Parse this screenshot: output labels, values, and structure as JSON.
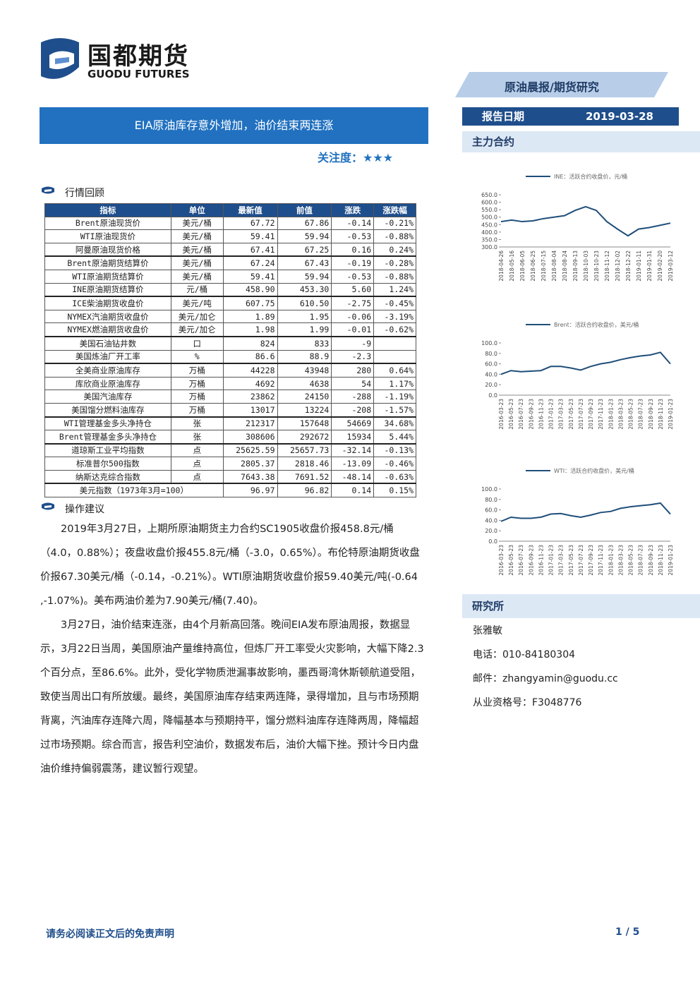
{
  "header": {
    "logo_cn": "国都期货",
    "logo_en": "GUODU FUTURES",
    "tag": "原油晨报/期货研究",
    "title": "EIA原油库存意外增加，油价结束两连涨",
    "attention_label": "关注度：",
    "attention_stars": "★★★",
    "date_label": "报告日期",
    "date": "2019-03-28"
  },
  "sections": {
    "contracts": "主力合约",
    "review": "行情回顾",
    "advice": "操作建议",
    "institute": "研究所"
  },
  "table": {
    "header": [
      "指标",
      "单位",
      "最新值",
      "前值",
      "涨跌",
      "涨跌幅"
    ],
    "groups": [
      [
        [
          "Brent原油现货价",
          "美元/桶",
          "67.72",
          "67.86",
          "-0.14",
          "-0.21%"
        ],
        [
          "WTI原油现货价",
          "美元/桶",
          "59.41",
          "59.94",
          "-0.53",
          "-0.88%"
        ],
        [
          "阿曼原油现货价格",
          "美元/桶",
          "67.41",
          "67.25",
          "0.16",
          "0.24%"
        ]
      ],
      [
        [
          "Brent原油期货结算价",
          "美元/桶",
          "67.24",
          "67.43",
          "-0.19",
          "-0.28%"
        ],
        [
          "WTI原油期货结算价",
          "美元/桶",
          "59.41",
          "59.94",
          "-0.53",
          "-0.88%"
        ],
        [
          "INE原油期货结算价",
          "元/桶",
          "458.90",
          "453.30",
          "5.60",
          "1.24%"
        ]
      ],
      [
        [
          "ICE柴油期货收盘价",
          "美元/吨",
          "607.75",
          "610.50",
          "-2.75",
          "-0.45%"
        ],
        [
          "NYMEX汽油期货收盘价",
          "美元/加仑",
          "1.89",
          "1.95",
          "-0.06",
          "-3.19%"
        ],
        [
          "NYMEX燃油期货收盘价",
          "美元/加仑",
          "1.98",
          "1.99",
          "-0.01",
          "-0.62%"
        ]
      ],
      [
        [
          "美国石油钻井数",
          "口",
          "824",
          "833",
          "-9",
          null
        ],
        [
          "美国炼油厂开工率",
          "%",
          "86.6",
          "88.9",
          "-2.3",
          null
        ]
      ],
      [
        [
          "全美商业原油库存",
          "万桶",
          "44228",
          "43948",
          "280",
          "0.64%"
        ],
        [
          "库欣商业原油库存",
          "万桶",
          "4692",
          "4638",
          "54",
          "1.17%"
        ],
        [
          "美国汽油库存",
          "万桶",
          "23862",
          "24150",
          "-288",
          "-1.19%"
        ],
        [
          "美国馏分燃料油库存",
          "万桶",
          "13017",
          "13224",
          "-208",
          "-1.57%"
        ]
      ],
      [
        [
          "WTI管理基金多头净持仓",
          "张",
          "212317",
          "157648",
          "54669",
          "34.68%"
        ],
        [
          "Brent管理基金多头净持仓",
          "张",
          "308606",
          "292672",
          "15934",
          "5.44%"
        ]
      ],
      [
        [
          "道琼斯工业平均指数",
          "点",
          "25625.59",
          "25657.73",
          "-32.14",
          "-0.13%"
        ],
        [
          "标准普尔500指数",
          "点",
          "2805.37",
          "2818.46",
          "-13.09",
          "-0.46%"
        ],
        [
          "纳斯达克综合指数",
          "点",
          "7643.38",
          "7691.52",
          "-48.14",
          "-0.63%"
        ]
      ],
      [
        [
          "美元指数（1973年3月=100）",
          "96.97",
          "96.82",
          "0.14",
          "0.15%"
        ]
      ]
    ]
  },
  "advice": [
    "2019年3月27日，上期所原油期货主力合约SC1905收盘价报458.8元/桶（4.0，0.88%）；夜盘收盘价报455.8元/桶（-3.0，0.65%）。布伦特原油期货收盘价报67.30美元/桶（-0.14，-0.21%）。WTI原油期货收盘价报59.40美元/吨(-0.64 ,-1.07%)。美布两油价差为7.90美元/桶(7.40)。",
    "3月27日，油价结束连涨，由4个月新高回落。晚间EIA发布原油周报，数据显示，3月22日当周，美国原油产量维持高位，但炼厂开工率受火灾影响，大幅下降2.3个百分点，至86.6%。此外，受化学物质泄漏事故影响，墨西哥湾休斯顿航道受阻，致使当周出口有所放缓。最终，美国原油库存结束两连降，录得增加，且与市场预期背离，汽油库存连降六周，降幅基本与预期持平，馏分燃料油库存连降两周，降幅超过市场预期。综合而言，报告利空油价，数据发布后，油价大幅下挫。预计今日内盘油价维持偏弱震荡，建议暂行观望。"
  ],
  "analyst": {
    "name": "张雅敏",
    "phone": "电话：010-84180304",
    "email": "邮件：zhangyamin@guodu.cc",
    "license": "从业资格号：F3048776"
  },
  "footer": {
    "disclaimer": "请务必阅读正文后的免责声明",
    "page": "1 / 5"
  },
  "chart_data": [
    {
      "type": "line",
      "categories": [
        "2018-04-26",
        "2018-05-16",
        "2018-06-05",
        "2018-06-25",
        "2018-07-15",
        "2018-08-04",
        "2018-08-24",
        "2018-09-13",
        "2018-10-03",
        "2018-10-23",
        "2018-11-12",
        "2018-12-02",
        "2018-12-22",
        "2019-01-11",
        "2019-01-31",
        "2019-02-20",
        "2019-03-12"
      ],
      "series": [
        {
          "name": "INE：活跃合约收盘价，元/桶",
          "color": "#1f4e79",
          "values": [
            470,
            480,
            470,
            475,
            490,
            500,
            510,
            545,
            570,
            545,
            470,
            420,
            375,
            420,
            430,
            445,
            460
          ]
        }
      ],
      "ylim": [
        300,
        650
      ],
      "yticks": [
        {
          "value": 300,
          "label": "300.0"
        },
        {
          "value": 350,
          "label": "350.0"
        },
        {
          "value": 400,
          "label": "400.0"
        },
        {
          "value": 450,
          "label": "450.0"
        },
        {
          "value": 500,
          "label": "500.0"
        },
        {
          "value": 550,
          "label": "550.0"
        },
        {
          "value": 600,
          "label": "600.0"
        },
        {
          "value": 650,
          "label": "650.0"
        }
      ]
    },
    {
      "type": "line",
      "categories": [
        "2016-03-23",
        "2016-05-23",
        "2016-07-23",
        "2016-09-23",
        "2016-11-23",
        "2017-01-23",
        "2017-03-23",
        "2017-05-23",
        "2017-07-23",
        "2017-09-23",
        "2017-11-23",
        "2018-01-23",
        "2018-03-23",
        "2018-05-23",
        "2018-07-23",
        "2018-09-23",
        "2018-11-23",
        "2019-01-23"
      ],
      "series": [
        {
          "name": "Brent：活跃合约收盘价，美元/桶",
          "color": "#1f4e79",
          "values": [
            40,
            47,
            45,
            46,
            47,
            55,
            55,
            52,
            48,
            55,
            60,
            63,
            68,
            72,
            75,
            77,
            82,
            60
          ]
        }
      ],
      "ylim": [
        0,
        100
      ],
      "yticks": [
        {
          "value": 0,
          "label": "0.0"
        },
        {
          "value": 20,
          "label": "20.0"
        },
        {
          "value": 40,
          "label": "40.0"
        },
        {
          "value": 60,
          "label": "60.0"
        },
        {
          "value": 80,
          "label": "80.0"
        },
        {
          "value": 100,
          "label": "100.0"
        }
      ]
    },
    {
      "type": "line",
      "categories": [
        "2016-03-23",
        "2016-05-23",
        "2016-07-23",
        "2016-09-23",
        "2016-11-23",
        "2017-01-23",
        "2017-03-23",
        "2017-05-23",
        "2017-07-23",
        "2017-09-23",
        "2017-11-23",
        "2018-01-23",
        "2018-03-23",
        "2018-05-23",
        "2018-07-23",
        "2018-09-23",
        "2018-11-23",
        "2019-01-23"
      ],
      "series": [
        {
          "name": "WTI：活跃合约收盘价，美元/桶",
          "color": "#1f4e79",
          "values": [
            38,
            46,
            44,
            44,
            46,
            52,
            53,
            49,
            46,
            50,
            55,
            57,
            63,
            66,
            68,
            70,
            73,
            52
          ]
        }
      ],
      "ylim": [
        0,
        100
      ],
      "yticks": [
        {
          "value": 0,
          "label": "0.0"
        },
        {
          "value": 20,
          "label": "20.0"
        },
        {
          "value": 40,
          "label": "40.0"
        },
        {
          "value": 60,
          "label": "60.0"
        },
        {
          "value": 80,
          "label": "80.0"
        },
        {
          "value": 100,
          "label": "100.0"
        }
      ]
    }
  ]
}
